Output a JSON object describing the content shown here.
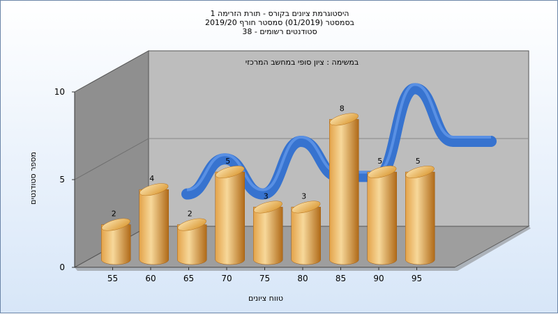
{
  "chart_data": {
    "type": "bar",
    "title_lines": [
      "היסטוגרמת ציונים בקורס - תורת הזרימה 1",
      "בסמסטר  (01/2019)  סמסטר חורף 2019/20",
      "סטודנטים רשומים - 38"
    ],
    "subtitle": "במשימה : ציון סופי במחשב המרכזי",
    "xlabel": "טווח ציונים",
    "ylabel": "מספר סטודנטים",
    "x_ticks": [
      "55",
      "60",
      "65",
      "70",
      "75",
      "80",
      "85",
      "90",
      "95"
    ],
    "y_ticks": [
      "0",
      "5",
      "10"
    ],
    "ylim": [
      0,
      10
    ],
    "categories": [
      "55-60",
      "60-65",
      "65-70",
      "70-75",
      "75-80",
      "80-85",
      "85-90",
      "90-95",
      "95-100"
    ],
    "values": [
      2,
      4,
      2,
      5,
      3,
      3,
      8,
      5,
      5
    ],
    "series": [
      {
        "values": [
          2,
          4,
          2,
          5,
          3,
          3,
          8,
          5,
          5
        ]
      }
    ],
    "bar_style": "3d-cylinder",
    "trend_ribbon": true,
    "colors": {
      "bar_light": "#f7d89a",
      "bar_mid": "#e3a34a",
      "bar_dark": "#b06a18",
      "ribbon": "#2f6fd0",
      "wall_back": "#bdbdbd",
      "wall_side": "#8f8f8f",
      "floor": "#9e9e9e"
    }
  }
}
